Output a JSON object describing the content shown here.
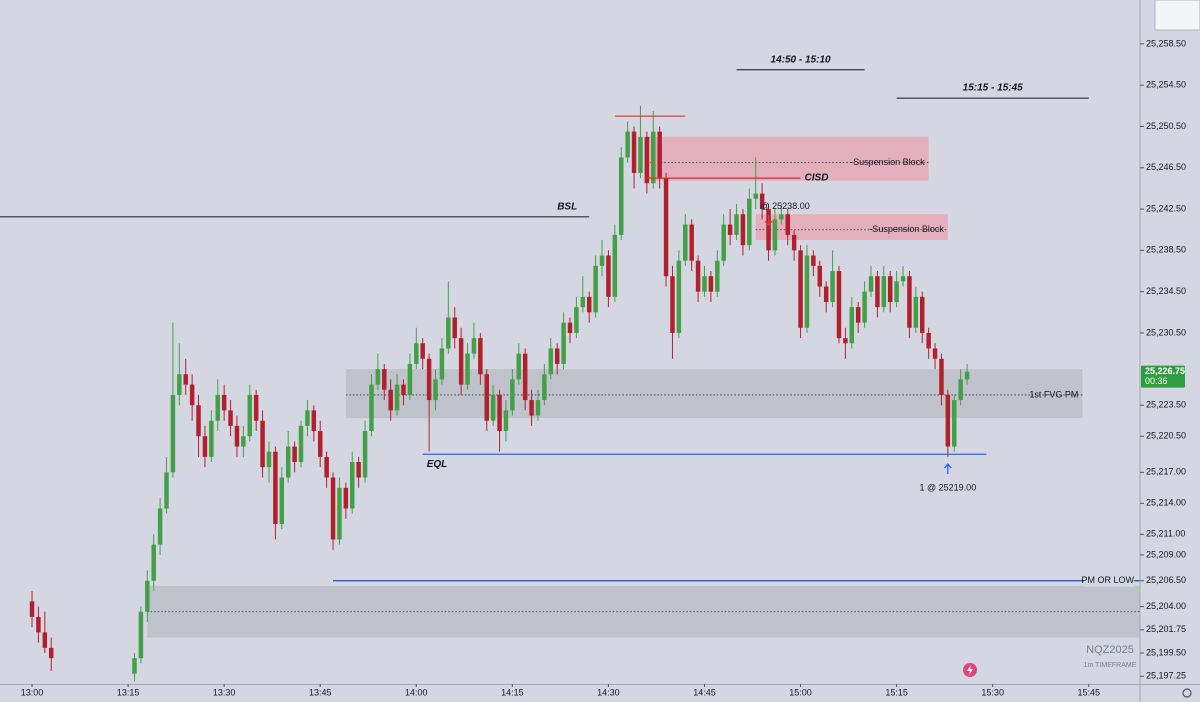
{
  "chart_data": {
    "type": "candlestick",
    "symbol": "NQZ2025",
    "timeframe": "1m TIMEFRAME",
    "up_color": "#43a047",
    "down_color": "#b2202e",
    "xlim": [
      "12:55",
      "15:53"
    ],
    "ylim": [
      25196.5,
      25262.75
    ],
    "xticks": [
      "13:00",
      "13:15",
      "13:30",
      "13:45",
      "14:00",
      "14:15",
      "14:30",
      "14:45",
      "15:00",
      "15:15",
      "15:30",
      "15:45"
    ],
    "yticks": [
      {
        "value": 25258.5,
        "label": "25,258.50"
      },
      {
        "value": 25254.5,
        "label": "25,254.50"
      },
      {
        "value": 25250.5,
        "label": "25,250.50"
      },
      {
        "value": 25246.5,
        "label": "25,246.50"
      },
      {
        "value": 25242.5,
        "label": "25,242.50"
      },
      {
        "value": 25238.5,
        "label": "25,238.50"
      },
      {
        "value": 25234.5,
        "label": "25,234.50"
      },
      {
        "value": 25230.5,
        "label": "25,230.50"
      },
      {
        "value": 25223.5,
        "label": "25,223.50"
      },
      {
        "value": 25220.5,
        "label": "25,220.50"
      },
      {
        "value": 25217,
        "label": "25,217.00"
      },
      {
        "value": 25214,
        "label": "25,214.00"
      },
      {
        "value": 25211,
        "label": "25,211.00"
      },
      {
        "value": 25209,
        "label": "25,209.00"
      },
      {
        "value": 25206.5,
        "label": "25,206.50"
      },
      {
        "value": 25204,
        "label": "25,204.00"
      },
      {
        "value": 25201.75,
        "label": "25,201.75"
      },
      {
        "value": 25199.5,
        "label": "25,199.50"
      },
      {
        "value": 25197.25,
        "label": "25,197.25"
      }
    ],
    "last_price": {
      "value": 25226.75,
      "label": "25,226.75"
    },
    "countdown": "00:36",
    "x": [
      "13:00",
      "13:01",
      "13:02",
      "13:03",
      "13:16",
      "13:17",
      "13:18",
      "13:19",
      "13:20",
      "13:21",
      "13:22",
      "13:23",
      "13:24",
      "13:25",
      "13:26",
      "13:27",
      "13:28",
      "13:29",
      "13:30",
      "13:31",
      "13:32",
      "13:33",
      "13:34",
      "13:35",
      "13:36",
      "13:37",
      "13:38",
      "13:39",
      "13:40",
      "13:41",
      "13:42",
      "13:43",
      "13:44",
      "13:45",
      "13:46",
      "13:47",
      "13:48",
      "13:49",
      "13:50",
      "13:51",
      "13:52",
      "13:53",
      "13:54",
      "13:55",
      "13:56",
      "13:57",
      "13:58",
      "13:59",
      "14:00",
      "14:01",
      "14:02",
      "14:03",
      "14:04",
      "14:05",
      "14:06",
      "14:07",
      "14:08",
      "14:09",
      "14:10",
      "14:11",
      "14:12",
      "14:13",
      "14:14",
      "14:15",
      "14:16",
      "14:17",
      "14:18",
      "14:19",
      "14:20",
      "14:21",
      "14:22",
      "14:23",
      "14:24",
      "14:25",
      "14:26",
      "14:27",
      "14:28",
      "14:29",
      "14:30",
      "14:31",
      "14:32",
      "14:33",
      "14:34",
      "14:35",
      "14:36",
      "14:37",
      "14:38",
      "14:39",
      "14:40",
      "14:41",
      "14:42",
      "14:43",
      "14:44",
      "14:45",
      "14:46",
      "14:47",
      "14:48",
      "14:49",
      "14:50",
      "14:51",
      "14:52",
      "14:53",
      "14:54",
      "14:55",
      "14:56",
      "14:57",
      "14:58",
      "14:59",
      "15:00",
      "15:01",
      "15:02",
      "15:03",
      "15:04",
      "15:05",
      "15:06",
      "15:07",
      "15:08",
      "15:09",
      "15:10",
      "15:11",
      "15:12",
      "15:13",
      "15:14",
      "15:15",
      "15:16",
      "15:17",
      "15:18",
      "15:19",
      "15:20",
      "15:21",
      "15:22",
      "15:23",
      "15:24",
      "15:25",
      "15:26"
    ],
    "open": [
      25204.5,
      25203.0,
      25201.5,
      25200.0,
      25197.5,
      25199.0,
      25203.5,
      25206.5,
      25210.0,
      25213.5,
      25217.0,
      25224.5,
      25226.5,
      25225.5,
      25223.5,
      25220.5,
      25218.5,
      25222.0,
      25224.5,
      25223.0,
      25221.5,
      25219.5,
      25220.5,
      25224.5,
      25222.0,
      25217.5,
      25219.0,
      25212.0,
      25216.5,
      25219.5,
      25218.0,
      25221.5,
      25223.0,
      25221.0,
      25218.5,
      25216.5,
      25210.5,
      25215.5,
      25213.5,
      25218.0,
      25216.5,
      25221.0,
      25225.5,
      25227.0,
      25225.0,
      25223.0,
      25225.5,
      25224.5,
      25227.5,
      25229.5,
      25228.0,
      25224.0,
      25226.0,
      25229.0,
      25232.0,
      25230.0,
      25225.5,
      25228.5,
      25230.0,
      25226.5,
      25222.0,
      25224.5,
      25221.0,
      25223.0,
      25226.0,
      25228.5,
      25224.0,
      25222.5,
      25224.0,
      25226.5,
      25229.0,
      25227.5,
      25231.5,
      25230.5,
      25233.0,
      25234.0,
      25232.5,
      25237.0,
      25238.0,
      25234.0,
      25240.0,
      25247.5,
      25250.0,
      25246.0,
      25249.5,
      25245.0,
      25250.0,
      25245.5,
      25236.0,
      25230.5,
      25237.5,
      25241.0,
      25237.5,
      25234.5,
      25236.0,
      25234.5,
      25237.5,
      25241.0,
      25240.0,
      25242.0,
      25239.0,
      25243.5,
      25244.0,
      25242.5,
      25238.5,
      25241.5,
      25242.0,
      25240.0,
      25238.5,
      25231.0,
      25238.0,
      25237.0,
      25235.0,
      25233.5,
      25236.5,
      25230.0,
      25229.5,
      25233.0,
      25231.5,
      25234.5,
      25236.0,
      25233.0,
      25236.0,
      25233.5,
      25235.5,
      25236.0,
      25231.0,
      25234.0,
      25230.5,
      25229.0,
      25228.0,
      25224.5,
      25219.5,
      25224.0,
      25226.0
    ],
    "high": [
      25205.5,
      25204.0,
      25203.5,
      25201.0,
      25199.5,
      25204.0,
      25207.5,
      25211.0,
      25214.5,
      25218.5,
      25231.5,
      25229.5,
      25228.0,
      25226.5,
      25224.5,
      25221.5,
      25223.0,
      25226.0,
      25225.5,
      25224.0,
      25222.5,
      25221.5,
      25225.5,
      25225.0,
      25223.0,
      25220.0,
      25219.5,
      25217.5,
      25221.0,
      25220.0,
      25222.0,
      25224.0,
      25223.5,
      25222.0,
      25219.0,
      25217.0,
      25216.5,
      25216.0,
      25219.0,
      25218.5,
      25222.0,
      25226.5,
      25228.5,
      25227.5,
      25226.0,
      25226.5,
      25226.0,
      25228.5,
      25231.0,
      25230.0,
      25228.5,
      25227.0,
      25230.0,
      25235.5,
      25233.0,
      25231.0,
      25229.5,
      25231.5,
      25230.5,
      25227.0,
      25225.5,
      25225.0,
      25224.0,
      25227.0,
      25229.5,
      25229.0,
      25225.0,
      25225.0,
      25227.5,
      25230.0,
      25229.5,
      25232.5,
      25232.0,
      25234.0,
      25236.0,
      25234.5,
      25238.0,
      25239.5,
      25238.5,
      25241.0,
      25248.5,
      25251.0,
      25250.5,
      25252.5,
      25250.0,
      25252.0,
      25250.5,
      25246.0,
      25237.0,
      25238.5,
      25242.0,
      25241.5,
      25238.0,
      25237.0,
      25236.5,
      25238.5,
      25242.0,
      25242.5,
      25243.0,
      25242.5,
      25244.5,
      25247.5,
      25245.0,
      25243.0,
      25242.5,
      25243.0,
      25242.5,
      25240.5,
      25239.0,
      25239.0,
      25238.5,
      25237.5,
      25235.5,
      25238.5,
      25237.0,
      25231.0,
      25234.0,
      25233.5,
      25235.5,
      25237.0,
      25236.5,
      25237.0,
      25236.5,
      25236.5,
      25237.0,
      25236.5,
      25235.0,
      25234.5,
      25231.0,
      25229.5,
      25228.5,
      25225.0,
      25224.5,
      25227.0,
      25227.5
    ],
    "low": [
      25202.0,
      25200.5,
      25199.5,
      25197.75,
      25196.75,
      25198.5,
      25202.5,
      25205.5,
      25209.0,
      25213.0,
      25216.5,
      25223.5,
      25224.5,
      25222.0,
      25218.5,
      25217.5,
      25218.0,
      25221.0,
      25222.0,
      25220.5,
      25218.5,
      25218.5,
      25220.0,
      25221.0,
      25216.5,
      25216.0,
      25210.5,
      25211.5,
      25216.0,
      25217.0,
      25217.5,
      25220.5,
      25220.0,
      25217.5,
      25215.5,
      25209.5,
      25210.0,
      25212.5,
      25213.0,
      25215.5,
      25216.0,
      25220.5,
      25225.0,
      25224.0,
      25222.0,
      25222.5,
      25223.5,
      25224.0,
      25227.0,
      25227.0,
      25219.0,
      25223.0,
      25225.5,
      25228.5,
      25229.0,
      25224.5,
      25225.0,
      25228.0,
      25225.5,
      25221.0,
      25221.5,
      25219.0,
      25220.0,
      25222.5,
      25225.5,
      25223.0,
      25221.5,
      25222.0,
      25223.5,
      25226.0,
      25226.5,
      25227.0,
      25229.5,
      25230.0,
      25232.5,
      25231.5,
      25232.0,
      25236.0,
      25233.0,
      25233.5,
      25239.5,
      25247.0,
      25244.5,
      25245.5,
      25244.0,
      25244.5,
      25244.5,
      25235.0,
      25228.0,
      25230.0,
      25237.0,
      25236.5,
      25233.5,
      25234.0,
      25233.5,
      25234.0,
      25237.0,
      25239.0,
      25239.5,
      25238.0,
      25238.5,
      25242.5,
      25241.5,
      25237.5,
      25238.0,
      25241.0,
      25239.0,
      25237.5,
      25230.0,
      25230.5,
      25236.0,
      25234.0,
      25232.5,
      25233.0,
      25229.5,
      25228.0,
      25229.0,
      25230.5,
      25231.0,
      25234.0,
      25232.0,
      25232.5,
      25232.5,
      25233.0,
      25235.0,
      25230.0,
      25230.5,
      25229.5,
      25228.0,
      25227.0,
      25223.5,
      25218.5,
      25219.0,
      25223.5,
      25225.5
    ],
    "close": [
      25203.0,
      25201.5,
      25200.0,
      25199.0,
      25199.0,
      25203.5,
      25206.5,
      25210.0,
      25213.5,
      25217.0,
      25224.5,
      25226.5,
      25225.5,
      25223.5,
      25220.5,
      25218.5,
      25222.0,
      25224.5,
      25223.0,
      25221.5,
      25219.5,
      25220.5,
      25224.5,
      25222.0,
      25217.5,
      25219.0,
      25212.0,
      25216.5,
      25219.5,
      25218.0,
      25221.5,
      25223.0,
      25221.0,
      25218.5,
      25216.5,
      25210.5,
      25215.5,
      25213.5,
      25218.0,
      25216.5,
      25221.0,
      25225.5,
      25227.0,
      25225.0,
      25223.0,
      25225.5,
      25224.5,
      25227.5,
      25229.5,
      25228.0,
      25224.0,
      25226.0,
      25229.0,
      25232.0,
      25230.0,
      25225.5,
      25228.5,
      25230.0,
      25226.5,
      25222.0,
      25224.5,
      25221.0,
      25223.0,
      25226.0,
      25228.5,
      25224.0,
      25222.5,
      25224.0,
      25226.5,
      25229.0,
      25227.5,
      25231.5,
      25230.5,
      25233.0,
      25234.0,
      25232.5,
      25237.0,
      25238.0,
      25234.0,
      25240.0,
      25247.5,
      25250.0,
      25246.0,
      25249.5,
      25245.0,
      25250.0,
      25245.5,
      25236.0,
      25230.5,
      25237.5,
      25241.0,
      25237.5,
      25234.5,
      25236.0,
      25234.5,
      25237.5,
      25241.0,
      25240.0,
      25242.0,
      25239.0,
      25243.5,
      25244.0,
      25242.5,
      25238.5,
      25241.5,
      25242.0,
      25240.0,
      25238.5,
      25231.0,
      25238.0,
      25237.0,
      25235.0,
      25233.5,
      25236.5,
      25230.0,
      25229.5,
      25233.0,
      25231.5,
      25234.5,
      25236.0,
      25233.0,
      25236.0,
      25233.5,
      25235.5,
      25236.0,
      25231.0,
      25234.0,
      25230.5,
      25229.0,
      25228.0,
      25224.5,
      25219.5,
      25224.0,
      25226.0,
      25226.75
    ],
    "annotations": [
      {
        "type": "zone",
        "start": "13:18",
        "end": "15:53",
        "top": 25206.0,
        "bottom": 25201.0,
        "mid": 25203.5,
        "color": "#b9bcc4"
      },
      {
        "type": "zone",
        "text": "1st FVG PM",
        "start": "13:49",
        "end": "15:44",
        "top": 25227.0,
        "bottom": 25222.25,
        "mid": 25224.5,
        "color": "#b9bcc4"
      },
      {
        "type": "zone",
        "text": "-Suspension Block",
        "start": "14:36",
        "end": "15:20",
        "top": 25249.5,
        "bottom": 25245.25,
        "mid": 25247.0,
        "color": "#e8a2b0"
      },
      {
        "type": "zone",
        "text": "-Suspension Block",
        "start": "14:53",
        "end": "15:23",
        "top": 25242.0,
        "bottom": 25239.5,
        "mid": 25240.5,
        "color": "#e8a2b0"
      },
      {
        "type": "level",
        "start": "14:31",
        "end": "14:42",
        "price": 25251.5,
        "color": "#e53935"
      },
      {
        "type": "level",
        "text": "CISD",
        "start": "14:36",
        "end": "15:00",
        "price": 25245.5,
        "color": "#d32f2f"
      },
      {
        "type": "level",
        "text": "BSL",
        "start": "12:55",
        "end": "14:27",
        "price": 25241.75,
        "color": "#2a2e39"
      },
      {
        "type": "level",
        "text": "EQL",
        "start": "14:01",
        "end": "15:29",
        "price": 25218.75,
        "color": "#2962ff"
      },
      {
        "type": "level",
        "text": "PM OR LOW",
        "start": "13:47",
        "end": "15:53",
        "price": 25206.5,
        "color": "#1e4bd2"
      },
      {
        "type": "range",
        "text": "14:50 - 15:10",
        "start": "14:50",
        "end": "15:10",
        "price": 25256.0,
        "color": "#131722"
      },
      {
        "type": "range",
        "text": "15:15 - 15:45",
        "start": "15:15",
        "end": "15:45",
        "price": 25253.25,
        "color": "#131722"
      },
      {
        "type": "fill",
        "text": "@ 25238.00",
        "time": "14:55",
        "price": 25240.75,
        "direction": "down",
        "color": "#e53935"
      },
      {
        "type": "fill",
        "text": "1 @ 25219.00",
        "time": "15:23",
        "price": 25218.0,
        "direction": "up",
        "color": "#2962ff"
      }
    ]
  }
}
